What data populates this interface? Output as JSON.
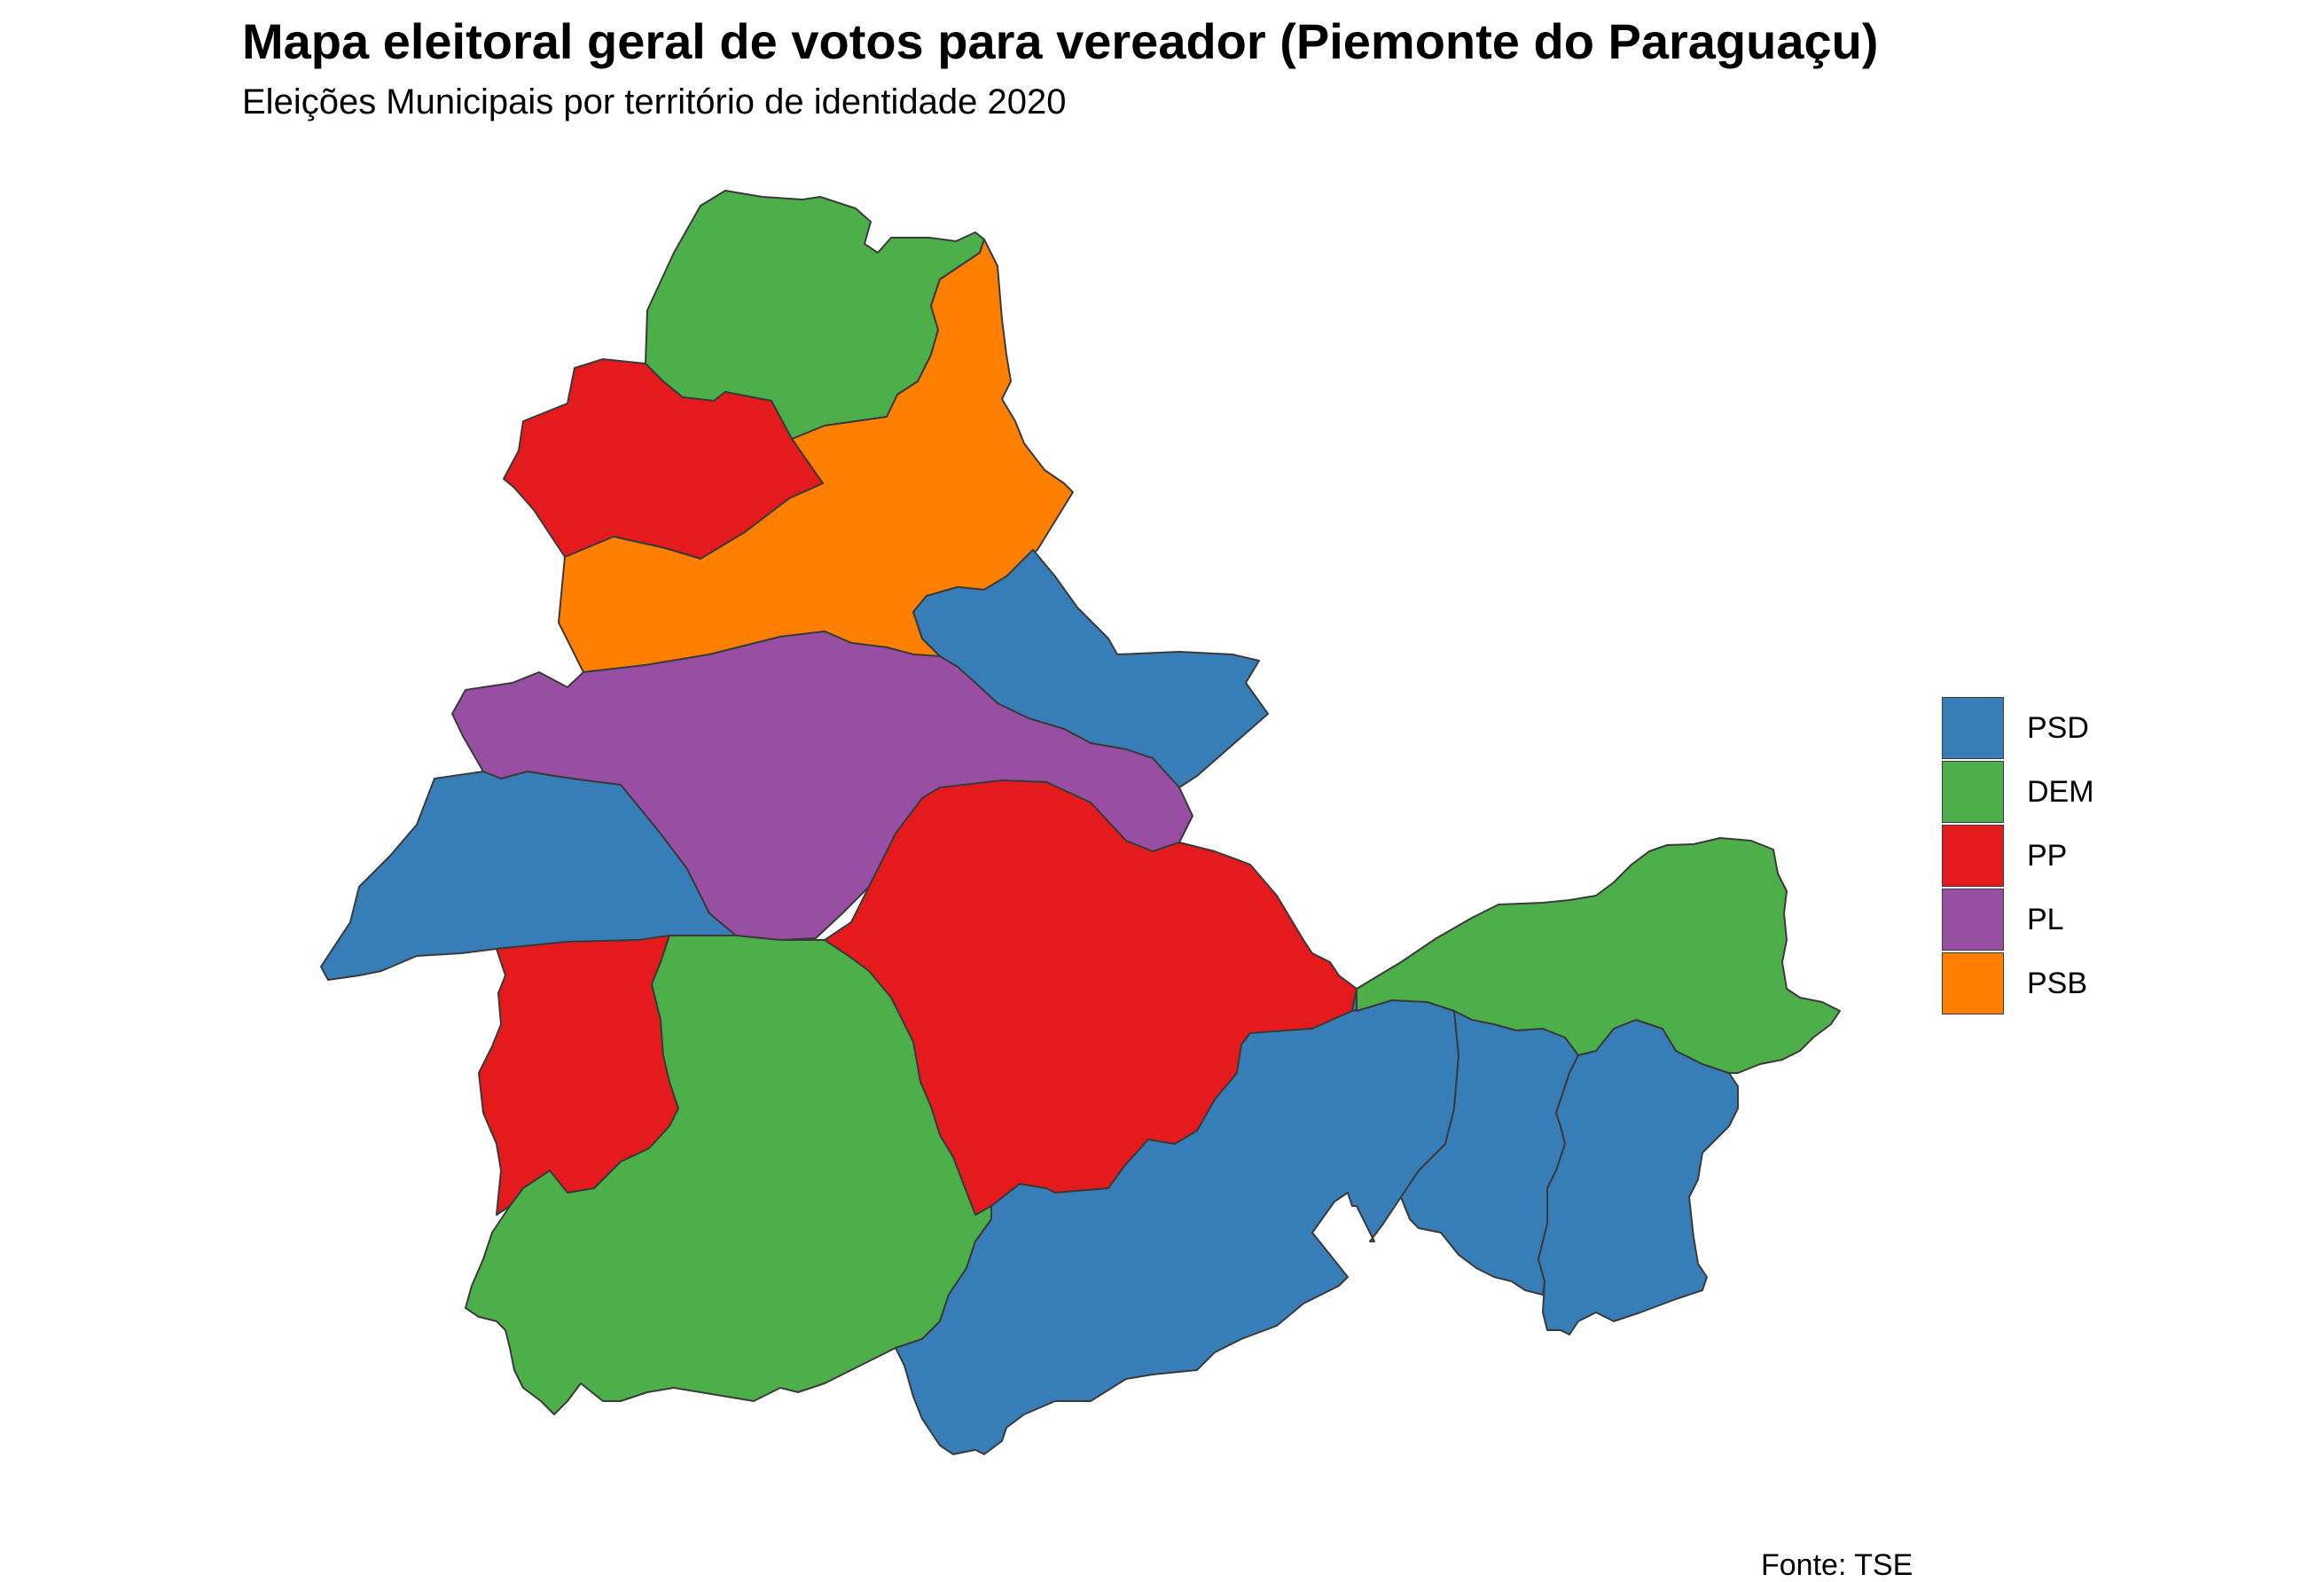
{
  "title": "Mapa eleitoral geral de votos para vereador (Piemonte do Paraguaçu)",
  "subtitle": "Eleições Municipais por território de identidade 2020",
  "caption": "Fonte: TSE",
  "legend": [
    {
      "label": "PSD",
      "color": "#377EB8"
    },
    {
      "label": "DEM",
      "color": "#4DAF4A"
    },
    {
      "label": "PP",
      "color": "#E41A1C"
    },
    {
      "label": "PL",
      "color": "#984EA3"
    },
    {
      "label": "PSB",
      "color": "#FF7F00"
    }
  ],
  "regions": [
    {
      "party": "DEM"
    },
    {
      "party": "PSB"
    },
    {
      "party": "PP"
    },
    {
      "party": "PSD"
    },
    {
      "party": "PL"
    },
    {
      "party": "PSD"
    },
    {
      "party": "PP"
    },
    {
      "party": "PP"
    },
    {
      "party": "DEM"
    },
    {
      "party": "PSD"
    },
    {
      "party": "PSD"
    },
    {
      "party": "PSD"
    },
    {
      "party": "PSD"
    },
    {
      "party": "DEM"
    }
  ]
}
